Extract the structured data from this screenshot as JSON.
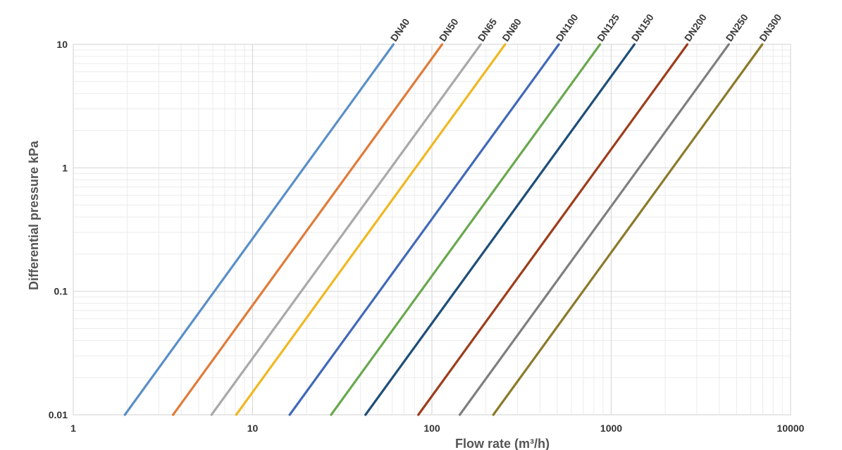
{
  "chart_data": {
    "type": "line",
    "title": "",
    "xlabel": "Flow rate (m³/h)",
    "ylabel": "Differential pressure kPa",
    "x_scale": "log",
    "y_scale": "log",
    "xlim": [
      1,
      10000
    ],
    "ylim": [
      0.01,
      10
    ],
    "x_ticks": [
      "1",
      "10",
      "100",
      "1000",
      "10000"
    ],
    "y_ticks": [
      "0.01",
      "0.1",
      "1",
      "10"
    ],
    "grid": true,
    "legend": "labels at line ends (top)",
    "series": [
      {
        "name": "DN40",
        "color": "#5b8fc7",
        "x": [
          1.94,
          61
        ],
        "y": [
          0.01,
          10
        ]
      },
      {
        "name": "DN50",
        "color": "#e07b39",
        "x": [
          3.6,
          114
        ],
        "y": [
          0.01,
          10
        ]
      },
      {
        "name": "DN65",
        "color": "#a9a9a9",
        "x": [
          5.9,
          187
        ],
        "y": [
          0.01,
          10
        ]
      },
      {
        "name": "DN80",
        "color": "#f0b823",
        "x": [
          8.1,
          256
        ],
        "y": [
          0.01,
          10
        ]
      },
      {
        "name": "DN100",
        "color": "#4169b8",
        "x": [
          16.1,
          510
        ],
        "y": [
          0.01,
          10
        ]
      },
      {
        "name": "DN125",
        "color": "#6aa84f",
        "x": [
          27.4,
          866
        ],
        "y": [
          0.01,
          10
        ]
      },
      {
        "name": "DN150",
        "color": "#1f4e79",
        "x": [
          42.6,
          1347
        ],
        "y": [
          0.01,
          10
        ]
      },
      {
        "name": "DN200",
        "color": "#9e3d1c",
        "x": [
          84,
          2656
        ],
        "y": [
          0.01,
          10
        ]
      },
      {
        "name": "DN250",
        "color": "#7f7f7f",
        "x": [
          143,
          4522
        ],
        "y": [
          0.01,
          10
        ]
      },
      {
        "name": "DN300",
        "color": "#8c7a2a",
        "x": [
          220,
          6957
        ],
        "y": [
          0.01,
          10
        ]
      }
    ]
  }
}
